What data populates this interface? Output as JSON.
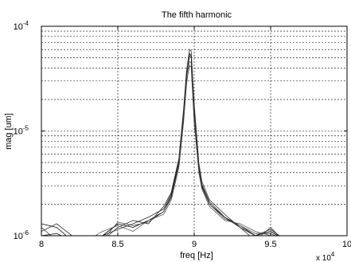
{
  "chart_data": {
    "type": "line",
    "title": "The fifth harmonic",
    "xlabel": "freq [Hz]",
    "ylabel": "mag [um]",
    "x_multiplier_label": "x 10",
    "x_multiplier_exp": "4",
    "xlim": [
      80000,
      100000
    ],
    "ylim": [
      1e-06,
      0.0001
    ],
    "y_scale": "log",
    "grid": true,
    "x_ticks": [
      {
        "value": 80000,
        "label": "8"
      },
      {
        "value": 85000,
        "label": "8.5"
      },
      {
        "value": 90000,
        "label": "9"
      },
      {
        "value": 95000,
        "label": "9.5"
      },
      {
        "value": 100000,
        "label": "10"
      }
    ],
    "y_ticks": [
      {
        "value": 1e-06,
        "base": "10",
        "exp": "-6"
      },
      {
        "value": 1e-05,
        "base": "10",
        "exp": "-5"
      },
      {
        "value": 0.0001,
        "base": "10",
        "exp": "-4"
      }
    ],
    "series": [
      {
        "x": [
          80000,
          81000,
          82000,
          83000,
          84000,
          85000,
          86000,
          87000,
          88000,
          88500,
          89000,
          89300,
          89500,
          89700,
          89800,
          90000,
          90300,
          90500,
          91000,
          92000,
          93000,
          94000,
          95000,
          96000,
          97000,
          98000,
          99000,
          100000
        ],
        "y": [
          1.3e-06,
          1.2e-06,
          9e-07,
          8e-07,
          1e-06,
          1.3e-06,
          1.2e-06,
          1.4e-06,
          1.7e-06,
          2.4e-06,
          5e-06,
          1.4e-05,
          3.3e-05,
          5.5e-05,
          5.2e-05,
          1.5e-05,
          4.3e-06,
          3e-06,
          2e-06,
          1.5e-06,
          1.25e-06,
          1e-06,
          1.1e-06,
          9e-07,
          9e-07,
          9e-07,
          9e-07,
          9e-07
        ]
      },
      {
        "x": [
          80000,
          81000,
          82000,
          83000,
          84000,
          85000,
          86000,
          87000,
          88000,
          88500,
          89000,
          89300,
          89500,
          89700,
          89800,
          90000,
          90300,
          90500,
          91000,
          92000,
          93000,
          94000,
          95000,
          96000,
          97000,
          98000,
          99000,
          100000
        ],
        "y": [
          1.1e-06,
          1.3e-06,
          1e-06,
          9e-07,
          9e-07,
          1.2e-06,
          1.4e-06,
          1.3e-06,
          1.9e-06,
          2.6e-06,
          5.5e-06,
          1.6e-05,
          3.8e-05,
          6e-05,
          5.8e-05,
          1.8e-05,
          5e-06,
          3.3e-06,
          2.2e-06,
          1.6e-06,
          1.2e-06,
          9e-07,
          1.2e-06,
          8e-07,
          9e-07,
          9e-07,
          1e-06,
          9e-07
        ]
      },
      {
        "x": [
          80000,
          81000,
          82000,
          83000,
          84000,
          85000,
          86000,
          87000,
          88000,
          88500,
          89000,
          89300,
          89500,
          89700,
          89800,
          90000,
          90300,
          90500,
          91000,
          92000,
          93000,
          94000,
          95000,
          96000,
          97000,
          98000,
          99000,
          100000
        ],
        "y": [
          9e-07,
          1e-06,
          8e-07,
          9e-07,
          1.1e-06,
          1.25e-06,
          1.1e-06,
          1.4e-06,
          1.6e-06,
          2.2e-06,
          4.5e-06,
          1.2e-05,
          2.8e-05,
          4.6e-05,
          4.5e-05,
          1.3e-05,
          4e-06,
          2.8e-06,
          1.9e-06,
          1.4e-06,
          1.3e-06,
          1.1e-06,
          1e-06,
          9e-07,
          9e-07,
          9e-07,
          9e-07,
          9e-07
        ]
      },
      {
        "x": [
          80000,
          81000,
          82000,
          83000,
          84000,
          85000,
          86000,
          87000,
          88000,
          88500,
          89000,
          89300,
          89500,
          89700,
          89800,
          90000,
          90300,
          90500,
          91000,
          92000,
          93000,
          94000,
          95000,
          96000,
          97000,
          98000,
          99000,
          100000
        ],
        "y": [
          1e-06,
          1.05e-06,
          9e-07,
          9e-07,
          1e-06,
          1.15e-06,
          1.3e-06,
          1.5e-06,
          1.8e-06,
          2.5e-06,
          5.2e-06,
          1.5e-05,
          3.5e-05,
          5.2e-05,
          5e-05,
          1.6e-05,
          4.6e-06,
          3.1e-06,
          2.1e-06,
          1.5e-06,
          1.2e-06,
          1e-06,
          1.15e-06,
          9e-07,
          9e-07,
          9e-07,
          9e-07,
          9e-07
        ]
      },
      {
        "x": [
          80000,
          81000,
          82000,
          83000,
          84000,
          85000,
          86000,
          87000,
          88000,
          88500,
          89000,
          89300,
          89500,
          89700,
          89800,
          90000,
          90300,
          90500,
          91000,
          92000,
          93000,
          94000,
          95000,
          96000,
          97000,
          98000,
          99000,
          100000
        ],
        "y": [
          1.2e-06,
          9e-07,
          1e-06,
          8e-07,
          9e-07,
          1.35e-06,
          1.25e-06,
          1.35e-06,
          1.7e-06,
          2.3e-06,
          4.8e-06,
          1.3e-05,
          3e-05,
          4.2e-05,
          4.1e-05,
          1.2e-05,
          4.2e-06,
          2.9e-06,
          2e-06,
          1.45e-06,
          1.25e-06,
          1.05e-06,
          1.05e-06,
          9e-07,
          9e-07,
          9e-07,
          9e-07,
          9e-07
        ]
      }
    ]
  }
}
